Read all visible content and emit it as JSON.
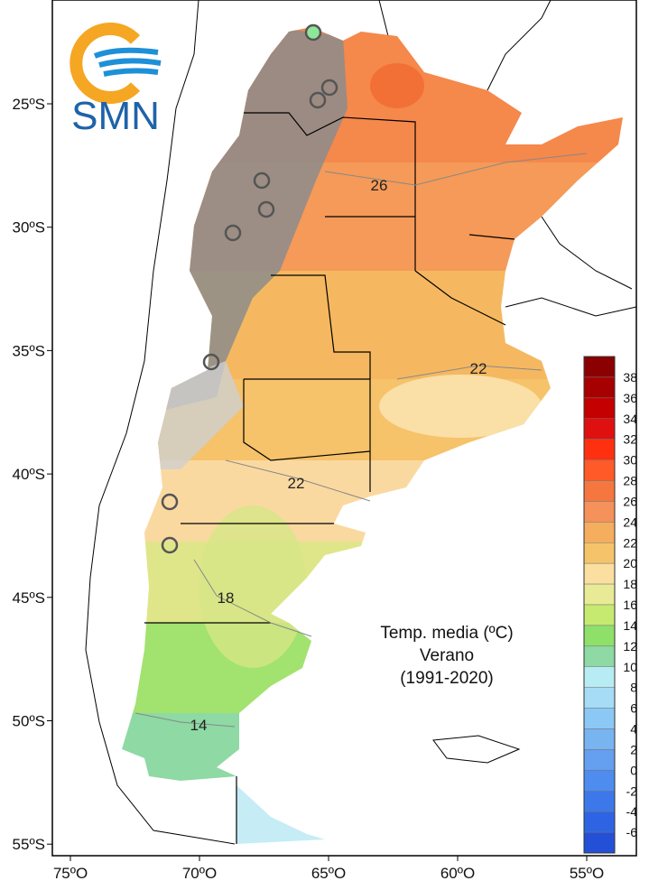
{
  "logo": {
    "text": "SMN"
  },
  "map": {
    "title_lines": [
      "Temp. media (ºC)",
      "Verano",
      "(1991-2020)"
    ],
    "lat_labels": [
      "25ºS",
      "30ºS",
      "35ºS",
      "40ºS",
      "45ºS",
      "50ºS",
      "55ºS"
    ],
    "lon_labels": [
      "75ºO",
      "70ºO",
      "65ºO",
      "60ºO",
      "55ºO"
    ],
    "contour_labels": [
      "26",
      "22",
      "22",
      "18",
      "14"
    ]
  },
  "legend": {
    "labels": [
      "38",
      "36",
      "34",
      "32",
      "30",
      "28",
      "26",
      "24",
      "22",
      "20",
      "18",
      "16",
      "14",
      "12",
      "10",
      "8",
      "6",
      "4",
      "2",
      "0",
      "-2",
      "-4",
      "-6"
    ],
    "colors": [
      "#8b0000",
      "#a60000",
      "#c40000",
      "#e01010",
      "#ff3010",
      "#ff5a28",
      "#f5773f",
      "#f5915a",
      "#f5ad5e",
      "#f5c46a",
      "#fadfa0",
      "#e8ea95",
      "#c6ea70",
      "#8ee06a",
      "#8ed9a4",
      "#b8ecf4",
      "#a6dcf5",
      "#8cc8f5",
      "#78b4f0",
      "#649ff0",
      "#4e8cf0",
      "#3c78ea",
      "#2e64e4",
      "#2450d8"
    ]
  }
}
